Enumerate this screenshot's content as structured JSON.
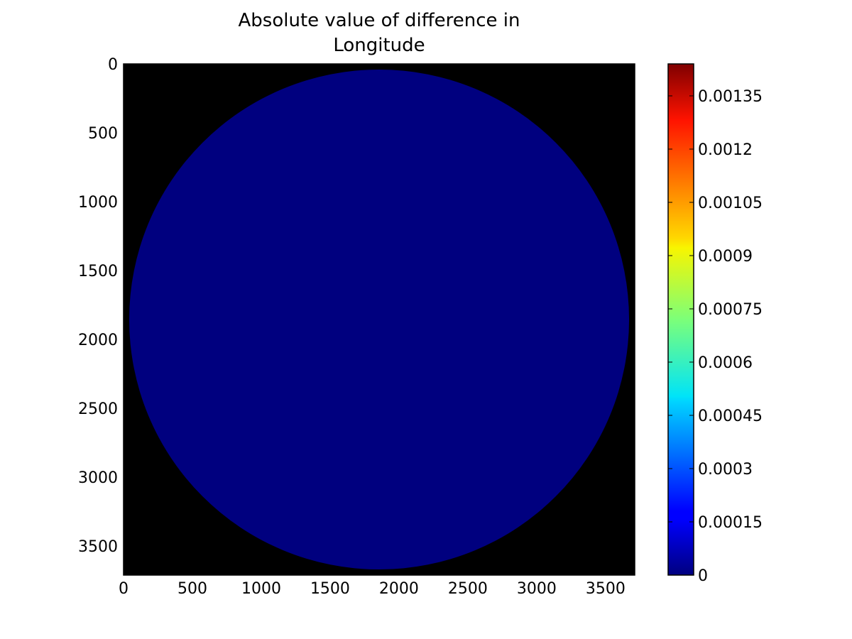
{
  "chart_data": {
    "type": "heatmap",
    "title_lines": [
      "Absolute value of difference in",
      "Longitude"
    ],
    "xlabel": "",
    "ylabel": "",
    "xlim": [
      0,
      3712
    ],
    "ylim": [
      3712,
      0
    ],
    "x_ticks": [
      "0",
      "500",
      "1000",
      "1500",
      "2000",
      "2500",
      "3000",
      "3500"
    ],
    "y_ticks": [
      "0",
      "500",
      "1000",
      "1500",
      "2000",
      "2500",
      "3000",
      "3500"
    ],
    "image": {
      "description_of_values": "disk of value 0 on black masked background",
      "disk_center": [
        1856,
        1856
      ],
      "disk_radius": 1815,
      "disk_value": 0,
      "background": "masked"
    },
    "colorbar": {
      "colormap": "jet",
      "vmin": 0,
      "vmax": 0.00144,
      "tick_labels": [
        "0",
        "0.00015",
        "0.0003",
        "0.00045",
        "0.0006",
        "0.00075",
        "0.0009",
        "0.00105",
        "0.0012",
        "0.00135"
      ],
      "tick_values": [
        0,
        0.00015,
        0.0003,
        0.00045,
        0.0006,
        0.00075,
        0.0009,
        0.00105,
        0.0012,
        0.00135
      ]
    },
    "grid": false,
    "colors": {
      "disk": "#00007f",
      "background": "#000000"
    }
  }
}
